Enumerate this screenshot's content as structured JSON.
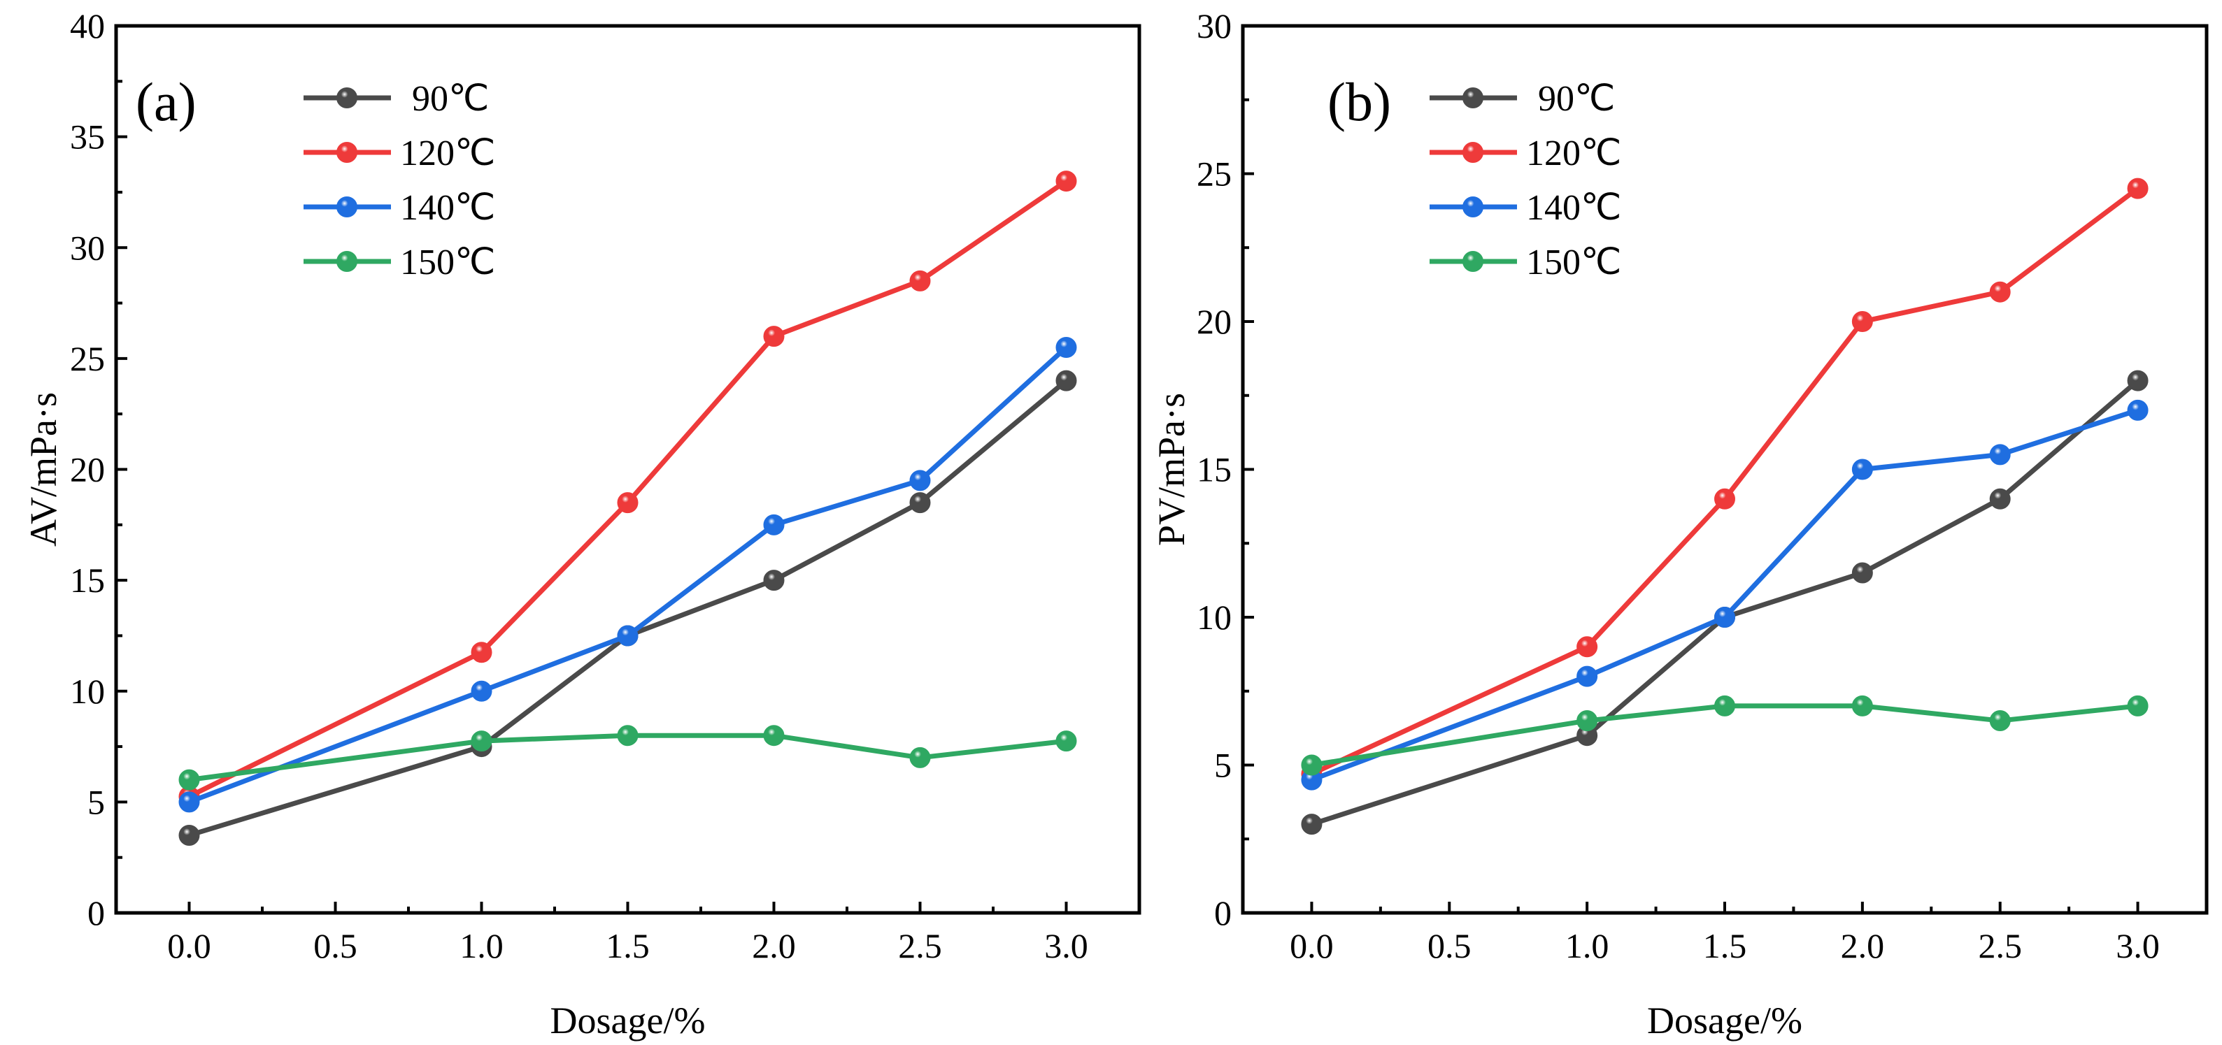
{
  "chart_data": [
    {
      "type": "line",
      "panel_label": "(a)",
      "xlabel": "Dosage/%",
      "ylabel": "AV/mPa·s",
      "xlim": [
        -0.25,
        3.25
      ],
      "ylim": [
        0,
        40
      ],
      "xticks": [
        "0.0",
        "0.5",
        "1.0",
        "1.5",
        "2.0",
        "2.5",
        "3.0"
      ],
      "yticks": [
        "0",
        "5",
        "10",
        "15",
        "20",
        "25",
        "30",
        "35",
        "40"
      ],
      "legend_position": "top-left",
      "x": [
        0.0,
        1.0,
        1.5,
        2.0,
        2.5,
        3.0
      ],
      "series": [
        {
          "name": "90℃",
          "color": "#4a4a4a",
          "values": [
            3.5,
            7.5,
            12.5,
            15,
            18.5,
            24
          ]
        },
        {
          "name": "120℃",
          "color": "#ee3a3a",
          "values": [
            5.25,
            11.75,
            18.5,
            26,
            28.5,
            33
          ]
        },
        {
          "name": "140℃",
          "color": "#1f6ee0",
          "values": [
            5,
            10,
            12.5,
            17.5,
            19.5,
            25.5
          ]
        },
        {
          "name": "150℃",
          "color": "#2fa862",
          "values": [
            6,
            7.75,
            8,
            8,
            7,
            7.75
          ]
        }
      ]
    },
    {
      "type": "line",
      "panel_label": "(b)",
      "xlabel": "Dosage/%",
      "ylabel": "PV/mPa·s",
      "xlim": [
        -0.25,
        3.25
      ],
      "ylim": [
        0,
        30
      ],
      "xticks": [
        "0.0",
        "0.5",
        "1.0",
        "1.5",
        "2.0",
        "2.5",
        "3.0"
      ],
      "yticks": [
        "0",
        "5",
        "10",
        "15",
        "20",
        "25",
        "30"
      ],
      "legend_position": "top-left",
      "x": [
        0.0,
        1.0,
        1.5,
        2.0,
        2.5,
        3.0
      ],
      "series": [
        {
          "name": "90℃",
          "color": "#4a4a4a",
          "values": [
            3,
            6,
            10,
            11.5,
            14,
            18
          ]
        },
        {
          "name": "120℃",
          "color": "#ee3a3a",
          "values": [
            4.7,
            9,
            14,
            20,
            21,
            24.5
          ]
        },
        {
          "name": "140℃",
          "color": "#1f6ee0",
          "values": [
            4.5,
            8,
            10,
            15,
            15.5,
            17
          ]
        },
        {
          "name": "150℃",
          "color": "#2fa862",
          "values": [
            5,
            6.5,
            7,
            7,
            6.5,
            7
          ]
        }
      ]
    }
  ]
}
